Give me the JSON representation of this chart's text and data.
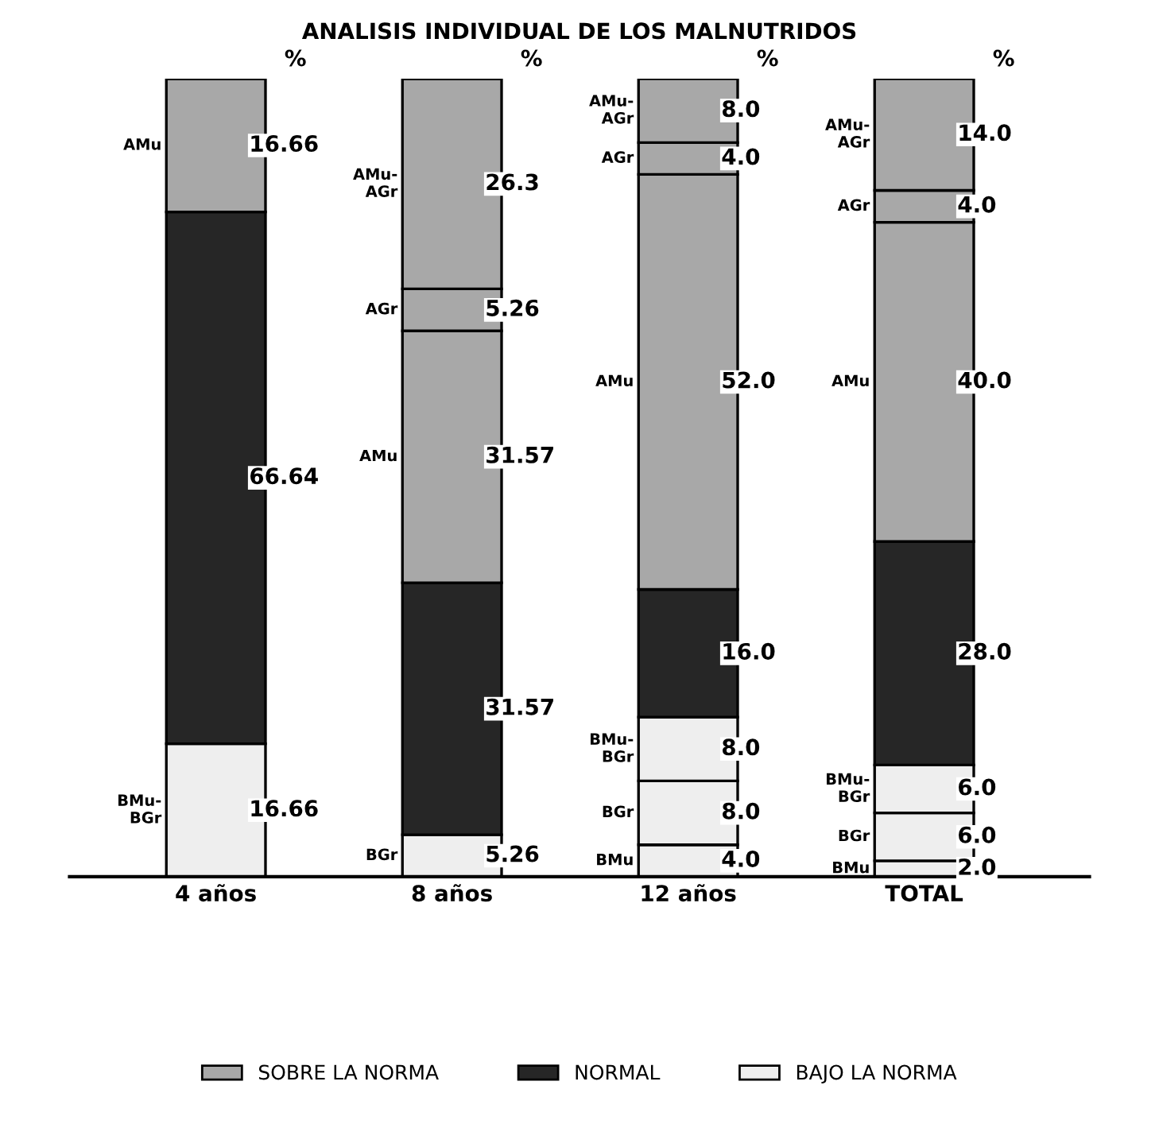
{
  "chart_data": {
    "type": "bar",
    "stacked": true,
    "title": "ANALISIS INDIVIDUAL DE LOS MALNUTRIDOS",
    "ylabel": "%",
    "categories": [
      "4 años",
      "8 años",
      "12 años",
      "TOTAL"
    ],
    "tick_labels": "x",
    "grid": false,
    "legend": "bottom",
    "series": [
      {
        "name": "BMu",
        "color": "#eeeeee",
        "values": [
          null,
          null,
          4.0,
          2.0
        ],
        "value_labels": [
          null,
          null,
          "4.0",
          "2.0"
        ]
      },
      {
        "name": "BGr",
        "color": "#eeeeee",
        "values": [
          null,
          5.26,
          8.0,
          6.0
        ],
        "value_labels": [
          null,
          "5.26",
          "8.0",
          "6.0"
        ]
      },
      {
        "name": "BMu-BGr",
        "color": "#eeeeee",
        "values": [
          16.66,
          null,
          8.0,
          6.0
        ],
        "value_labels": [
          "16.66",
          null,
          "8.0",
          "6.0"
        ]
      },
      {
        "color": "#262626",
        "values": [
          66.64,
          31.57,
          16.0,
          28.0
        ],
        "value_labels": [
          "66.64",
          "31.57",
          "16.0",
          "28.0"
        ]
      },
      {
        "name": "AMu",
        "color": "#a8a8a8",
        "values": [
          16.66,
          31.57,
          52.0,
          40.0
        ],
        "value_labels": [
          "16.66",
          "31.57",
          "52.0",
          "40.0"
        ]
      },
      {
        "name": "AGr",
        "color": "#a8a8a8",
        "values": [
          null,
          5.26,
          4.0,
          4.0
        ],
        "value_labels": [
          null,
          "5.26",
          "4.0",
          "4.0"
        ]
      },
      {
        "name": "AMu-AGr",
        "color": "#a8a8a8",
        "values": [
          null,
          26.3,
          8.0,
          14.0
        ],
        "value_labels": [
          null,
          "26.3",
          "8.0",
          "14.0"
        ]
      }
    ],
    "annotations": [
      "SOBRE LA NORMA",
      "NORMAL",
      "BAJO LA NORMA"
    ]
  }
}
